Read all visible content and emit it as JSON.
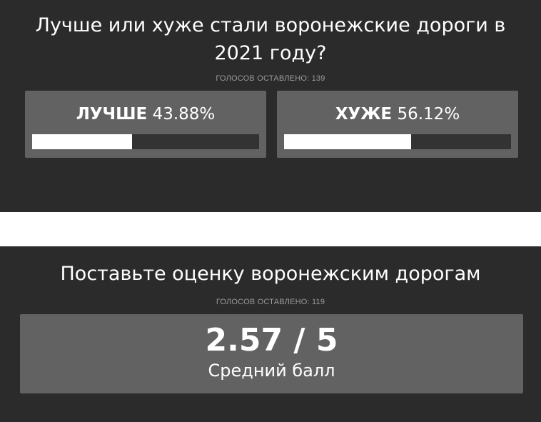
{
  "poll": {
    "question": "Лучше или хуже стали воронежские дороги в 2021 году?",
    "votes_text": "ГОЛОСОВ ОСТАВЛЕНО: 139",
    "options": [
      {
        "label": "ЛУЧШЕ",
        "percent_text": "43.88%",
        "percent": 43.88
      },
      {
        "label": "ХУЖЕ",
        "percent_text": "56.12%",
        "percent": 56.12
      }
    ]
  },
  "rating": {
    "question": "Поставьте оценку воронежским дорогам",
    "votes_text": "ГОЛОСОВ ОСТАВЛЕНО: 119",
    "score_text": "2.57 / 5",
    "score_label": "Средний балл"
  },
  "colors": {
    "panel_bg": "#2b2b2b",
    "option_bg": "#626262",
    "bar_track": "#333333",
    "bar_fill": "#ffffff",
    "muted_text": "#9a9a9a"
  }
}
